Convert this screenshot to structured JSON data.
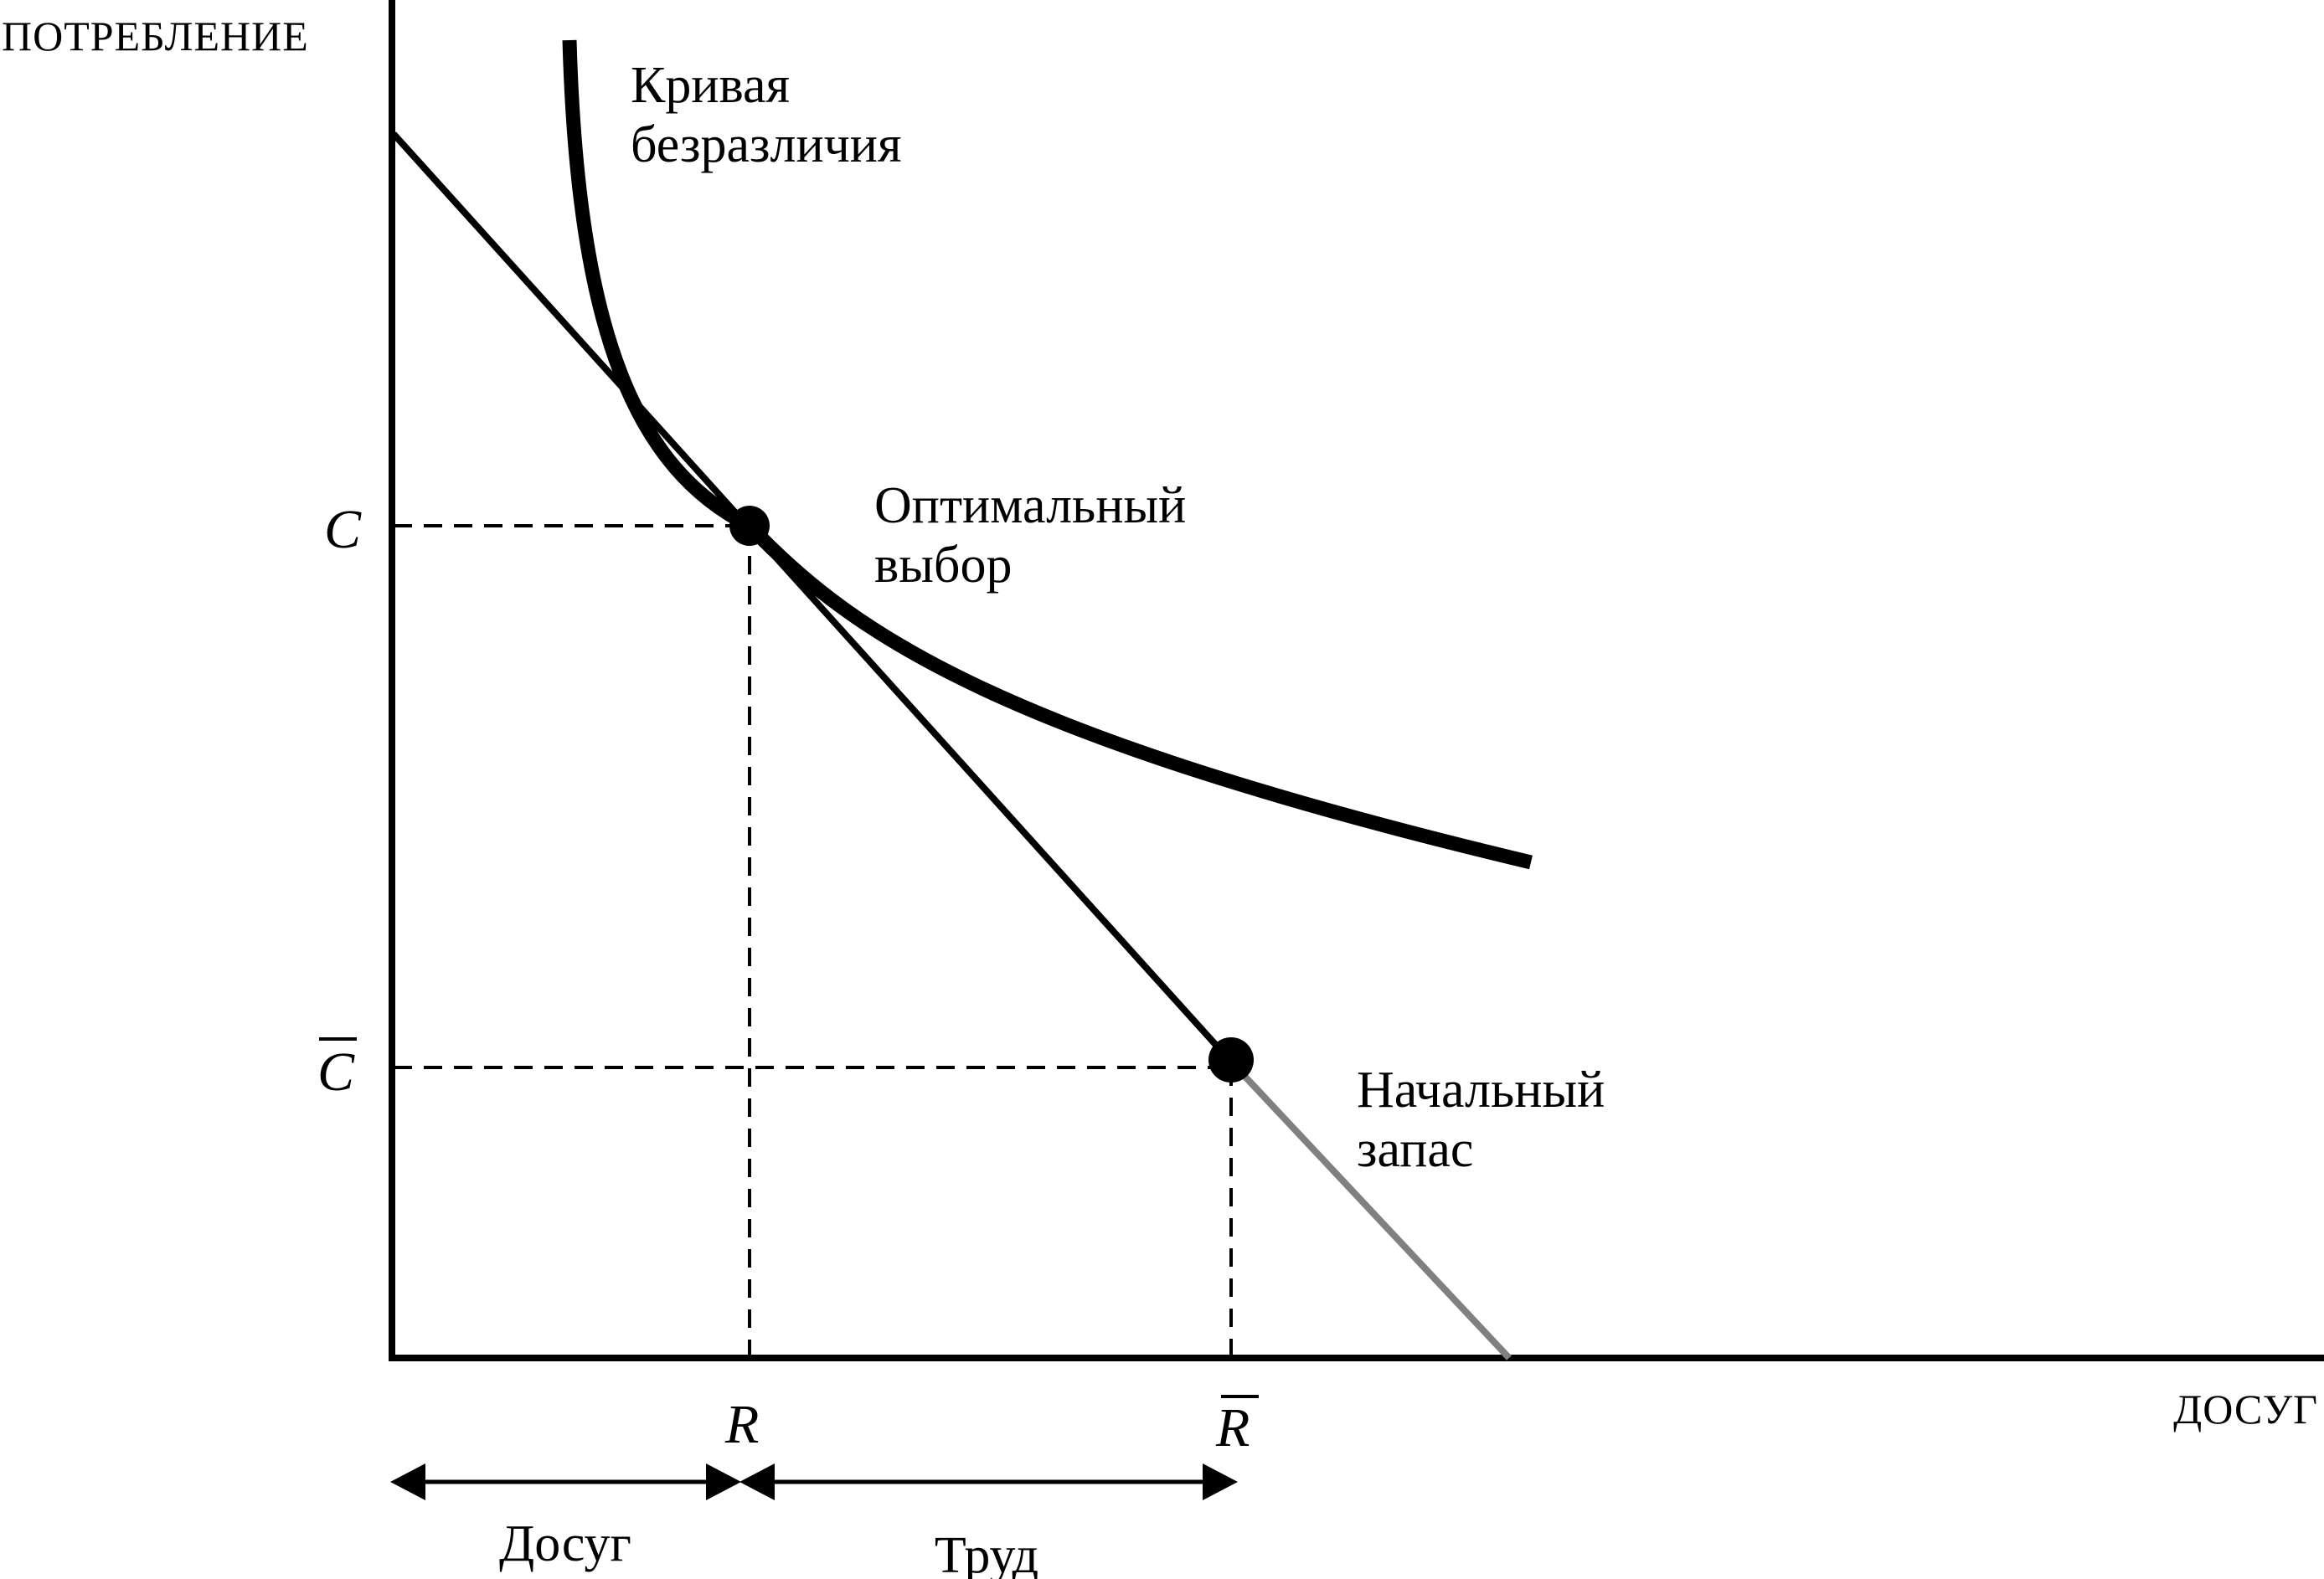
{
  "axes": {
    "y_title": "ПОТРЕБЛЕНИЕ",
    "x_title": "ДОСУГ"
  },
  "tick_labels": {
    "c": "C",
    "c_bar": "C",
    "r": "R",
    "r_bar": "R"
  },
  "annotations": {
    "indifference_curve": [
      "Кривая",
      "безразличия"
    ],
    "optimal_choice": [
      "Оптимальный",
      "выбор"
    ],
    "endowment": [
      "Начальный",
      "запас"
    ]
  },
  "brackets": {
    "leisure": "Досуг",
    "labor": "Труд"
  },
  "colors": {
    "ink": "#000000",
    "budget_extension": "#808080"
  }
}
